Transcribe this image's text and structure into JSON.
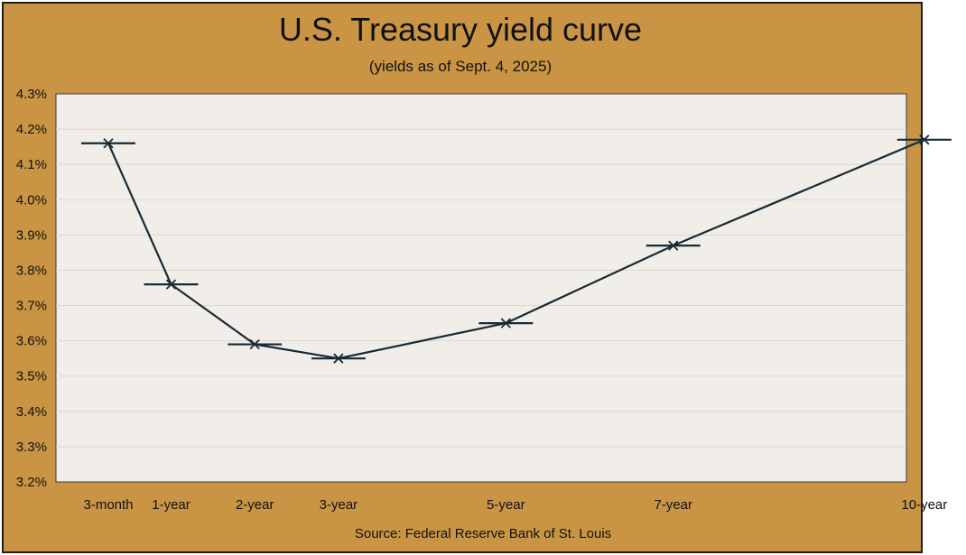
{
  "chart_data": {
    "type": "line",
    "title": "U.S. Treasury yield curve",
    "subtitle": "(yields as of Sept. 4, 2025)",
    "source": "Source: Federal Reserve Bank of St. Louis",
    "xlabel": "",
    "ylabel": "",
    "categories": [
      "3-month",
      "1-year",
      "2-year",
      "3-year",
      "5-year",
      "7-year",
      "10-year"
    ],
    "category_maturity_years": [
      0.25,
      1,
      2,
      3,
      5,
      7,
      10
    ],
    "series": [
      {
        "values": [
          4.16,
          3.76,
          3.59,
          3.55,
          3.65,
          3.87,
          4.17
        ]
      }
    ],
    "ylim": [
      3.2,
      4.3
    ],
    "yticks": [
      3.2,
      3.3,
      3.4,
      3.5,
      3.6,
      3.7,
      3.8,
      3.9,
      4.0,
      4.1,
      4.2,
      4.3
    ],
    "ytick_labels": [
      "3.2%",
      "3.3%",
      "3.4%",
      "3.5%",
      "3.6%",
      "3.7%",
      "3.8%",
      "3.9%",
      "4.0%",
      "4.1%",
      "4.2%",
      "4.3%"
    ],
    "grid": true,
    "legend": "none",
    "colors": {
      "frame": "#c99545",
      "plot_background": "#f1ede8",
      "line": "#172a36",
      "grid": "#dcd6cf"
    }
  }
}
